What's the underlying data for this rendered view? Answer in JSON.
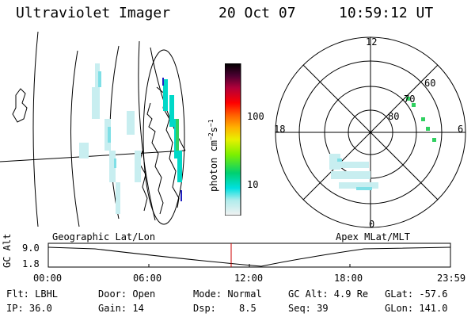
{
  "header": {
    "instrument": "Ultraviolet Imager",
    "date": "20 Oct 07",
    "time": "10:59:12 UT"
  },
  "colorbar": {
    "title": "photon cm-2s-1",
    "title_main": "photon cm",
    "title_sup1": "−2",
    "title_mid": "s",
    "title_sup2": "−1",
    "ticks": [
      "100",
      "10"
    ],
    "scale": "log",
    "colors": [
      "#f2f2f2",
      "#b0ecec",
      "#00e0e0",
      "#00d070",
      "#7cf000",
      "#e8f000",
      "#ffb000",
      "#ff6000",
      "#ff0000",
      "#b0003a",
      "#4a0030",
      "#000000"
    ]
  },
  "polar_plot": {
    "hour_labels": [
      "12",
      "18",
      "6",
      "0"
    ],
    "lat_labels": [
      "60",
      "70",
      "80"
    ]
  },
  "timeline": {
    "ylabel": "GC Alt",
    "yticks": [
      "9.0",
      "1.8"
    ],
    "left_label": "Geographic Lat/Lon",
    "right_label": "Apex MLat/MLT",
    "xticks": [
      "00:00",
      "06:00",
      "12:00",
      "18:00",
      "23:59"
    ],
    "marker_color": "#cc0000"
  },
  "info": {
    "row1": {
      "flt": "Flt: LBHL",
      "door": "Door: Open",
      "mode": "Mode: Normal",
      "gcalt": "GC Alt: 4.9 Re",
      "glat": "GLat: -57.6"
    },
    "row2": {
      "ip": "IP: 36.0",
      "gain": "Gain: 14",
      "dsp_label": "Dsp:",
      "dsp_value": "8.5",
      "seq": "Seq: 39",
      "glon": "GLon: 141.0"
    }
  }
}
